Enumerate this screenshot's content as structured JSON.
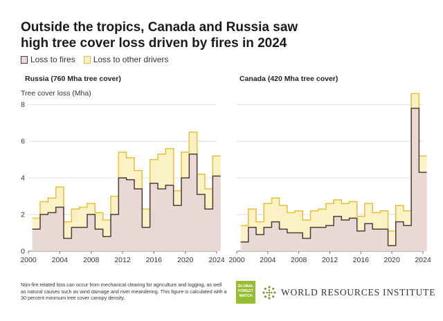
{
  "header": {
    "title_line1": "Outside the tropics, Canada and Russia saw",
    "title_line2": "high tree cover loss driven by fires in 2024"
  },
  "legend": {
    "fires_label": "Loss to fires",
    "other_label": "Loss to other drivers"
  },
  "colors": {
    "fire_fill": "#ead8d4",
    "fire_line": "#4a3e3a",
    "other_fill": "#fbf1c7",
    "other_line": "#e8c031",
    "grid": "#d6d6d6",
    "axis": "#777777"
  },
  "footer": {
    "footnote": "Non-fire related loss can occur from mechanical clearing for agriculture and logging, as well as natural causes such as wind damage and river meandering. This figure is calculated with a 30 percent minimum tree cover canopy density.",
    "gfw_line1": "GLOBAL",
    "gfw_line2": "FOREST",
    "gfw_line3": "WATCH",
    "wri_name": "WORLD RESOURCES INSTITUTE"
  },
  "chart_data": [
    {
      "type": "area",
      "title": "Russia (760 Mha tree cover)",
      "ylabel": "Tree cover loss (Mha)",
      "xlabel": "",
      "x": [
        2001,
        2002,
        2003,
        2004,
        2005,
        2006,
        2007,
        2008,
        2009,
        2010,
        2011,
        2012,
        2013,
        2014,
        2015,
        2016,
        2017,
        2018,
        2019,
        2020,
        2021,
        2022,
        2023,
        2024
      ],
      "xticks": [
        2000,
        2004,
        2008,
        2012,
        2016,
        2020,
        2024
      ],
      "yticks": [
        0,
        2,
        4,
        6,
        8
      ],
      "xlim": [
        2000,
        2024
      ],
      "ylim": [
        0,
        8.5
      ],
      "series": [
        {
          "name": "Loss to fires",
          "values": [
            1.2,
            2.0,
            2.1,
            2.4,
            0.7,
            1.3,
            1.3,
            2.0,
            1.2,
            0.8,
            2.0,
            4.0,
            3.9,
            3.4,
            1.3,
            3.7,
            3.4,
            3.6,
            2.5,
            4.0,
            5.3,
            3.1,
            2.3,
            4.1
          ]
        },
        {
          "name": "Loss to other drivers",
          "values": [
            1.8,
            2.7,
            2.9,
            3.5,
            1.6,
            2.3,
            2.4,
            2.6,
            2.1,
            1.7,
            3.0,
            5.4,
            5.1,
            4.4,
            2.3,
            5.0,
            5.3,
            5.6,
            3.3,
            5.4,
            6.5,
            4.2,
            3.4,
            5.2
          ]
        }
      ],
      "grid": true,
      "legend": "top-left"
    },
    {
      "type": "area",
      "title": "Canada (420 Mha tree cover)",
      "ylabel": "",
      "xlabel": "",
      "x": [
        2001,
        2002,
        2003,
        2004,
        2005,
        2006,
        2007,
        2008,
        2009,
        2010,
        2011,
        2012,
        2013,
        2014,
        2015,
        2016,
        2017,
        2018,
        2019,
        2020,
        2021,
        2022,
        2023,
        2024
      ],
      "xticks": [
        2000,
        2004,
        2008,
        2012,
        2016,
        2020,
        2024
      ],
      "yticks": [
        0,
        2,
        4,
        6,
        8
      ],
      "xlim": [
        2000,
        2024
      ],
      "ylim": [
        0,
        8.5
      ],
      "series": [
        {
          "name": "Loss to fires",
          "values": [
            0.5,
            1.3,
            0.9,
            1.3,
            1.6,
            1.2,
            1.0,
            1.0,
            0.7,
            1.3,
            1.3,
            1.4,
            1.9,
            1.7,
            1.8,
            1.1,
            1.5,
            1.2,
            1.2,
            0.3,
            1.6,
            1.4,
            7.8,
            4.3
          ]
        },
        {
          "name": "Loss to other drivers",
          "values": [
            1.4,
            2.3,
            1.6,
            2.6,
            2.9,
            2.5,
            2.1,
            2.2,
            1.7,
            2.2,
            2.3,
            2.6,
            2.8,
            2.6,
            2.7,
            1.9,
            2.6,
            2.1,
            2.2,
            1.1,
            2.5,
            2.2,
            8.6,
            5.2
          ]
        }
      ],
      "grid": true
    }
  ]
}
